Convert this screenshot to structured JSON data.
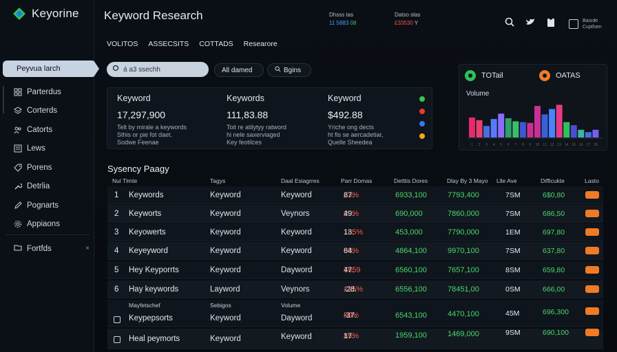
{
  "brand": {
    "name": "Keyorine"
  },
  "sidebar": {
    "active": "Peyvua larch",
    "items": [
      {
        "label": "Parterdus",
        "icon": "grid-icon"
      },
      {
        "label": "Corterds",
        "icon": "layers-icon"
      },
      {
        "label": "Catorts",
        "icon": "users-icon"
      },
      {
        "label": "Lews",
        "icon": "list-icon"
      },
      {
        "label": "Porens",
        "icon": "tag-icon"
      },
      {
        "label": "Detrlia",
        "icon": "wrench-icon"
      },
      {
        "label": "Pognarts",
        "icon": "pen-icon"
      },
      {
        "label": "Appiaons",
        "icon": "gear-icon"
      }
    ],
    "footer": {
      "label": "Fortfds",
      "close": "×"
    }
  },
  "header": {
    "title": "Keyword Research",
    "stat_a": {
      "label": "Dhsss tas",
      "value_blue": "11 5883",
      "value_green": "08"
    },
    "stat_b": {
      "label": "Datso slas",
      "value": "£33530",
      "suffix": "Y"
    },
    "profile": {
      "line1": "Basrde",
      "line2": "Cuptlsen"
    }
  },
  "tabs": [
    "VOLITOS",
    "ASSECSITS",
    "COTTADS",
    "Researore"
  ],
  "search": {
    "placeholder": "á a3 ssechh"
  },
  "chips": {
    "all": "All damed",
    "tags": "Bgins"
  },
  "metrics": [
    {
      "heading": "Keyword",
      "value": "17,297,900",
      "sub1": "Telt by mirale a keywords",
      "sub2": "Sthis or pie fot daet.",
      "sub3": "Sodwe Feenae"
    },
    {
      "heading": "Keywords",
      "value": "111,83.88",
      "sub1": "Toit re atilytyy ratword",
      "sub2": "hi nele saxerviaged",
      "sub3": "Key feotilces"
    },
    {
      "heading": "Keyword",
      "value": "$492.88",
      "sub1": "Yriche ong dects",
      "sub2": "ht fis se aercadetiar,",
      "sub3": "Quelle Sheedea"
    }
  ],
  "metric_dots": [
    "#3fbf4a",
    "#f0392a",
    "#2f7cf0",
    "#f4a51a"
  ],
  "chart": {
    "legend": [
      {
        "label": "TOTail",
        "color": "#2ec15a"
      },
      {
        "label": "OATAS",
        "color": "#f07a26"
      }
    ]
  },
  "chart_data": {
    "type": "bar",
    "title": "Volume",
    "categories": [
      "1",
      "2",
      "3",
      "4",
      "5",
      "6",
      "7",
      "8",
      "9",
      "10",
      "11",
      "12",
      "13",
      "14",
      "15",
      "16",
      "17",
      "18"
    ],
    "values": [
      52,
      45,
      30,
      48,
      62,
      50,
      42,
      40,
      38,
      82,
      60,
      74,
      85,
      40,
      32,
      20,
      14,
      20
    ],
    "colors": [
      "#e52a6b",
      "#e8406e",
      "#4a6de0",
      "#5a79ff",
      "#8b6bff",
      "#2ea06a",
      "#3dbd6a",
      "#3e55d8",
      "#c9308c",
      "#c93095",
      "#3a60d8",
      "#4784ff",
      "#e43b86",
      "#2ec15a",
      "#4a4fd2",
      "#3fb7a0",
      "#4a6de0",
      "#7a5ef2"
    ],
    "ylim": [
      0,
      100
    ],
    "xlabel": "",
    "ylabel": "Volume"
  },
  "table": {
    "title": "Sysency Paagy",
    "columns": [
      "Nul Tlmte",
      "Tagys",
      "Daal Esiagrres",
      "Parr Domas",
      "Detttis Dores",
      "Dlay By 3 Mayo",
      "Llle Ave",
      "Difficukte",
      "Lasto"
    ],
    "rows": [
      {
        "num": "1",
        "kw": "Keywords",
        "tag": "Keyword",
        "kw2": "Keyword",
        "pct_a": "87.",
        "pct_b": "23%",
        "d1": "6933,100",
        "d2": "7793,400",
        "d3": "7SM",
        "d4": "6$0,80"
      },
      {
        "num": "2",
        "kw": "Keyworts",
        "tag": "Keyword",
        "kw2": "Veynors",
        "pct_a": "49.",
        "pct_b": "29%",
        "d1": "690,000",
        "d2": "7860,000",
        "d3": "7SM",
        "d4": "686,50"
      },
      {
        "num": "3",
        "kw": "Keyowerts",
        "tag": "Keyword",
        "kw2": "Keyword",
        "pct_a": "13.",
        "pct_b": "185%",
        "d1": "453,000",
        "d2": "7790,000",
        "d3": "1EM",
        "d4": "697,80"
      },
      {
        "num": "4",
        "kw": "Keyeyword",
        "tag": "Keyword",
        "kw2": "Keyword",
        "pct_a": "64.",
        "pct_b": "38%",
        "d1": "4864,100",
        "d2": "9970,100",
        "d3": "7SM",
        "d4": "637,80"
      },
      {
        "num": "5",
        "kw": "Hey Keyporrts",
        "tag": "Keyword",
        "kw2": "Dayword",
        "pct_a": "47.",
        "pct_b": "7859",
        "d1": "6560,100",
        "d2": "7657,100",
        "d3": "8SM",
        "d4": "659,80"
      },
      {
        "num": "6",
        "kw": "Hay keywords",
        "tag": "Layword",
        "kw2": "Veynors",
        "pct_a": "-28.",
        "pct_b": "125%",
        "d1": "6556,100",
        "d2": "78451,00",
        "d3": "0SM",
        "d4": "666,00"
      }
    ],
    "tall_row": {
      "top_kw": "Mayfetschef",
      "top_tag": "Sebigos",
      "top_kw2": "Volume",
      "kw": "Keypepsorts",
      "tag": "Keyword",
      "kw2": "Dayword",
      "pct_a": "-37.",
      "pct_b": "50%",
      "d1": "6543,100",
      "d2": "4470,100",
      "d3": "45M",
      "d4": "696,300"
    },
    "last_row": {
      "kw": "Heal peymorts",
      "tag": "Keyword",
      "kw2": "Keyword",
      "pct_a": "17.",
      "pct_b": "85%",
      "d1": "1959,100",
      "d2": "1469,000",
      "d3": "9SM",
      "d4": "690,100"
    }
  }
}
